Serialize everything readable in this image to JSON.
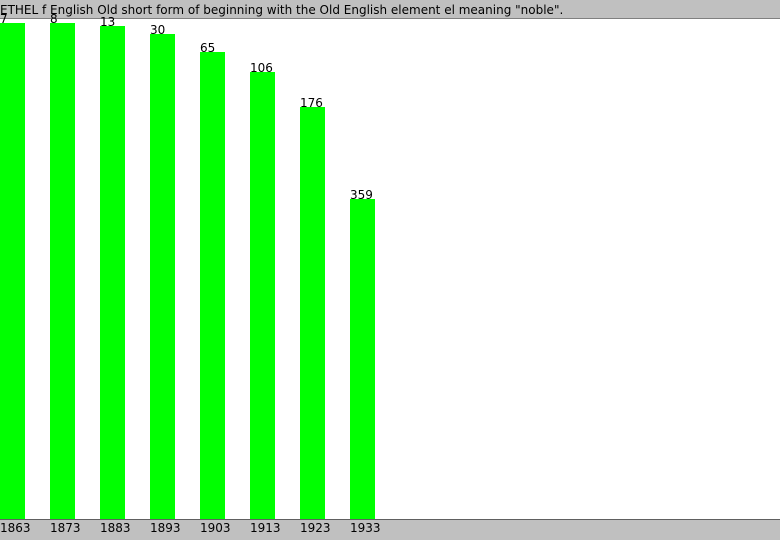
{
  "chart_data": {
    "type": "bar",
    "title": "ETHEL f English Old short form of beginning with the Old English element el meaning \"noble\".",
    "categories": [
      "1863",
      "1873",
      "1883",
      "1893",
      "1903",
      "1913",
      "1923",
      "1933"
    ],
    "values": [
      7,
      8,
      13,
      30,
      65,
      106,
      176,
      359
    ],
    "xlabel": "",
    "ylabel": "",
    "ylim": [
      0,
      1000
    ],
    "y_direction": "inverted",
    "grid": false,
    "legend": "none",
    "bar_color": "#00ff00"
  }
}
